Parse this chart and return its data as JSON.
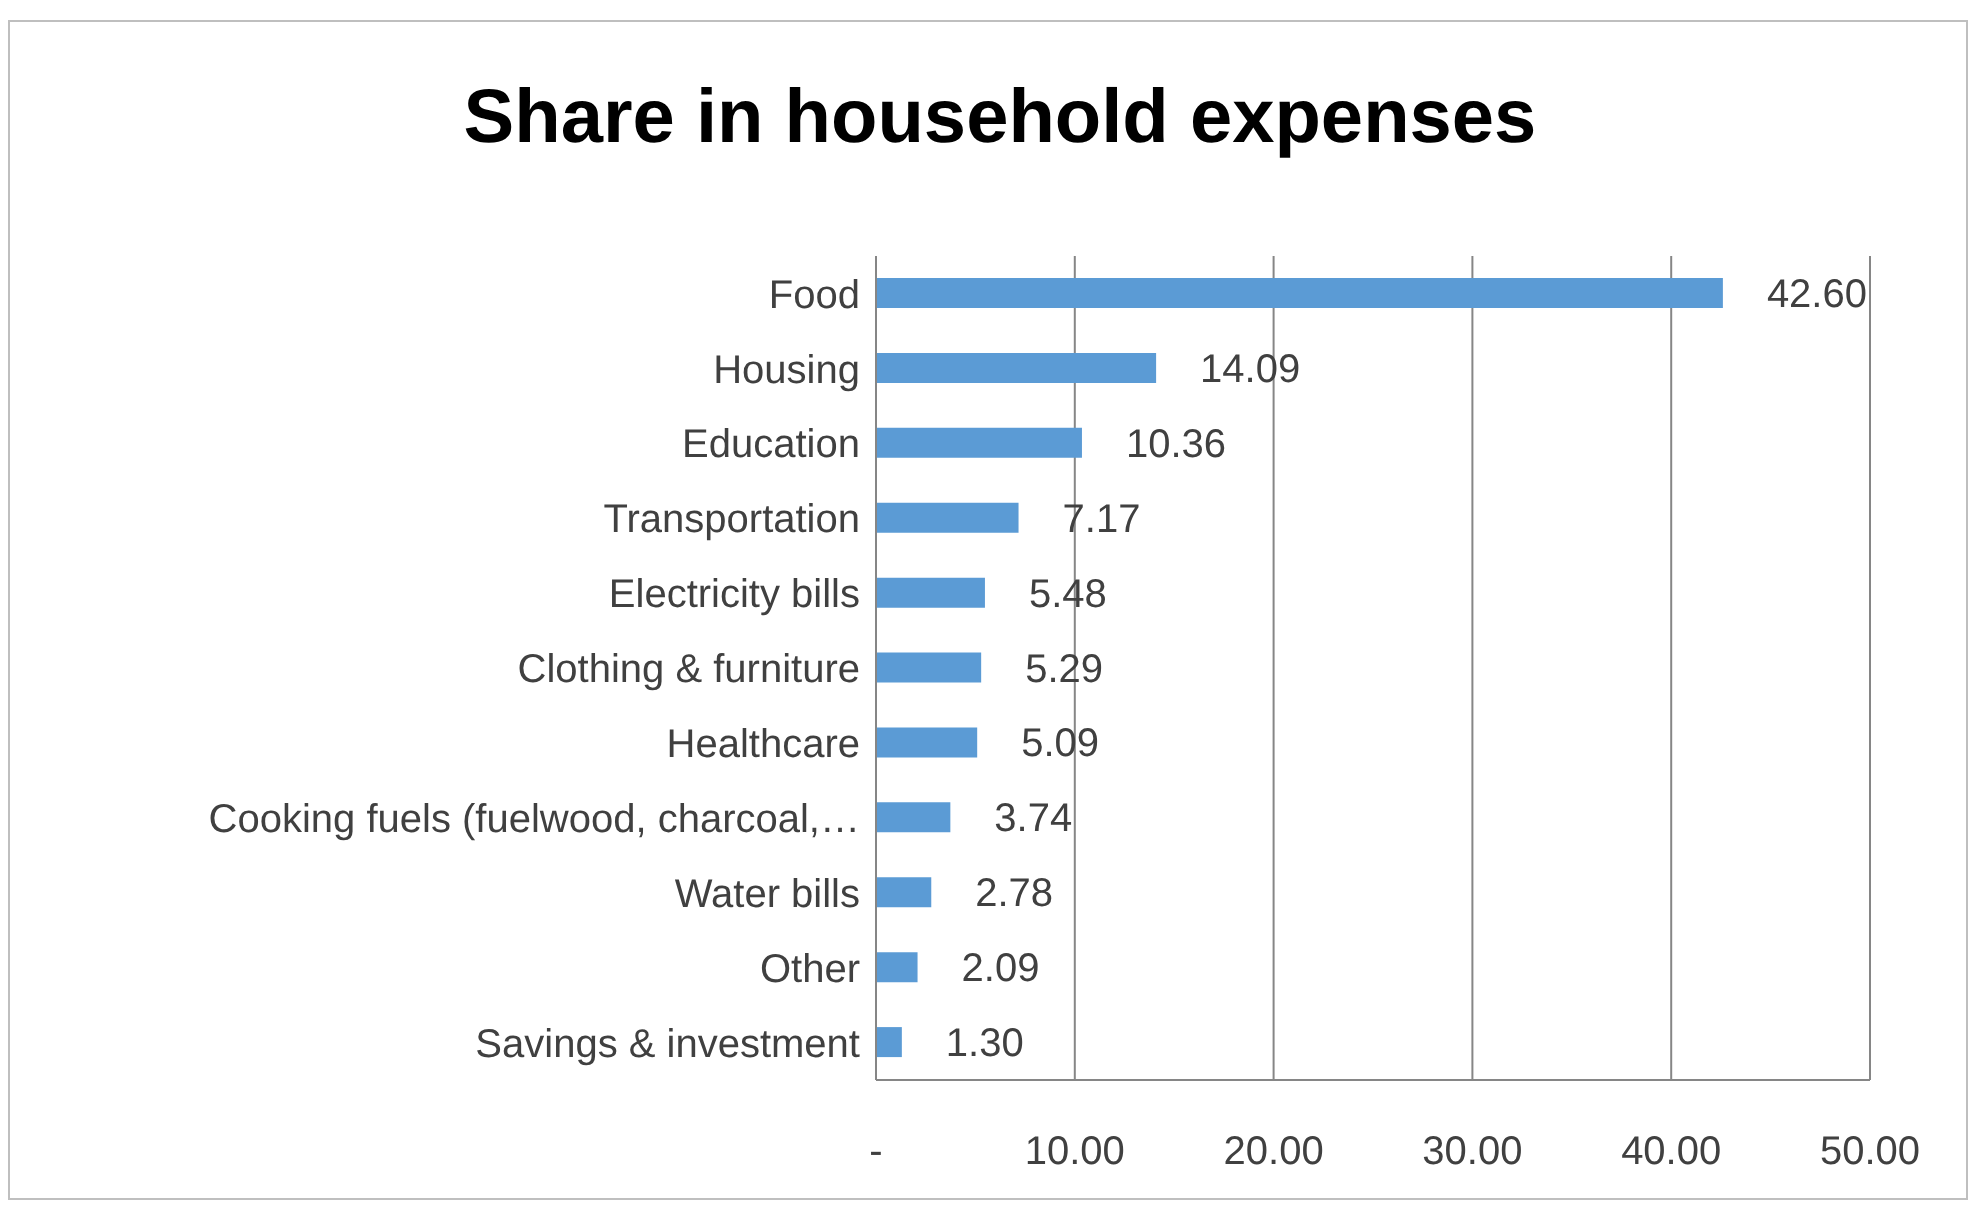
{
  "chart_data": {
    "type": "bar",
    "orientation": "horizontal",
    "title": "Share in household expenses",
    "categories": [
      "Food",
      "Housing",
      "Education",
      "Transportation",
      "Electricity bills",
      "Clothing & furniture",
      "Healthcare",
      "Cooking fuels (fuelwood, charcoal,…",
      "Water bills",
      "Other",
      "Savings & investment"
    ],
    "values": [
      42.6,
      14.09,
      10.36,
      7.17,
      5.48,
      5.29,
      5.09,
      3.74,
      2.78,
      2.09,
      1.3
    ],
    "value_labels": [
      "42.60",
      "14.09",
      "10.36",
      "7.17",
      "5.48",
      "5.29",
      "5.09",
      "3.74",
      "2.78",
      "2.09",
      "1.30"
    ],
    "color": "#5b9bd5",
    "xlim": [
      0,
      50
    ],
    "xticks": [
      {
        "value": 0,
        "label": "-"
      },
      {
        "value": 10,
        "label": "10.00"
      },
      {
        "value": 20,
        "label": "20.00"
      },
      {
        "value": 30,
        "label": "30.00"
      },
      {
        "value": 40,
        "label": "40.00"
      },
      {
        "value": 50,
        "label": "50.00"
      }
    ],
    "grid": "x"
  }
}
